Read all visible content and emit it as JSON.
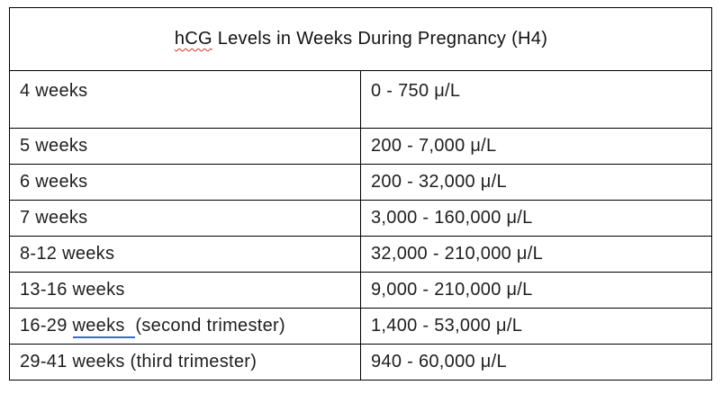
{
  "title": {
    "misspelled_word": "hCG",
    "rest": " Levels in Weeks During Pregnancy (H4)",
    "full": "hCG Levels in Weeks During Pregnancy (H4)"
  },
  "table": {
    "rows": [
      {
        "week_prefix": "4 weeks",
        "week_flagged": "",
        "week_suffix": "",
        "level": "0 - 750 μ/L"
      },
      {
        "week_prefix": "5 weeks",
        "week_flagged": "",
        "week_suffix": "",
        "level": "200 - 7,000 μ/L"
      },
      {
        "week_prefix": "6 weeks",
        "week_flagged": "",
        "week_suffix": "",
        "level": "200 - 32,000 μ/L"
      },
      {
        "week_prefix": "7 weeks",
        "week_flagged": "",
        "week_suffix": "",
        "level": "3,000 - 160,000 μ/L"
      },
      {
        "week_prefix": "8-12 weeks",
        "week_flagged": "",
        "week_suffix": "",
        "level": "32,000 - 210,000 μ/L"
      },
      {
        "week_prefix": "13-16 weeks",
        "week_flagged": "",
        "week_suffix": "",
        "level": "9,000 - 210,000 μ/L"
      },
      {
        "week_prefix": "16-29 ",
        "week_flagged": "weeks  ",
        "week_suffix": "(second trimester)",
        "level": "1,400 - 53,000 μ/L"
      },
      {
        "week_prefix": "29-41 weeks (third trimester)",
        "week_flagged": "",
        "week_suffix": "",
        "level": "940 - 60,000 μ/L"
      }
    ]
  },
  "chart_data": {
    "type": "table",
    "title": "hCG Levels in Weeks During Pregnancy (H4)",
    "rows": [
      [
        "4 weeks",
        "0 - 750 μ/L"
      ],
      [
        "5 weeks",
        "200 - 7,000 μ/L"
      ],
      [
        "6 weeks",
        "200 - 32,000 μ/L"
      ],
      [
        "7 weeks",
        "3,000 - 160,000 μ/L"
      ],
      [
        "8-12 weeks",
        "32,000 - 210,000 μ/L"
      ],
      [
        "13-16 weeks",
        "9,000 - 210,000 μ/L"
      ],
      [
        "16-29 weeks  (second trimester)",
        "1,400 - 53,000 μ/L"
      ],
      [
        "29-41 weeks (third trimester)",
        "940 - 60,000 μ/L"
      ]
    ]
  },
  "colors": {
    "border": "#000000",
    "text": "#1e1e1e",
    "spellcheck_red": "#d93025",
    "grammar_blue": "#3b6cc9",
    "background": "#ffffff"
  }
}
